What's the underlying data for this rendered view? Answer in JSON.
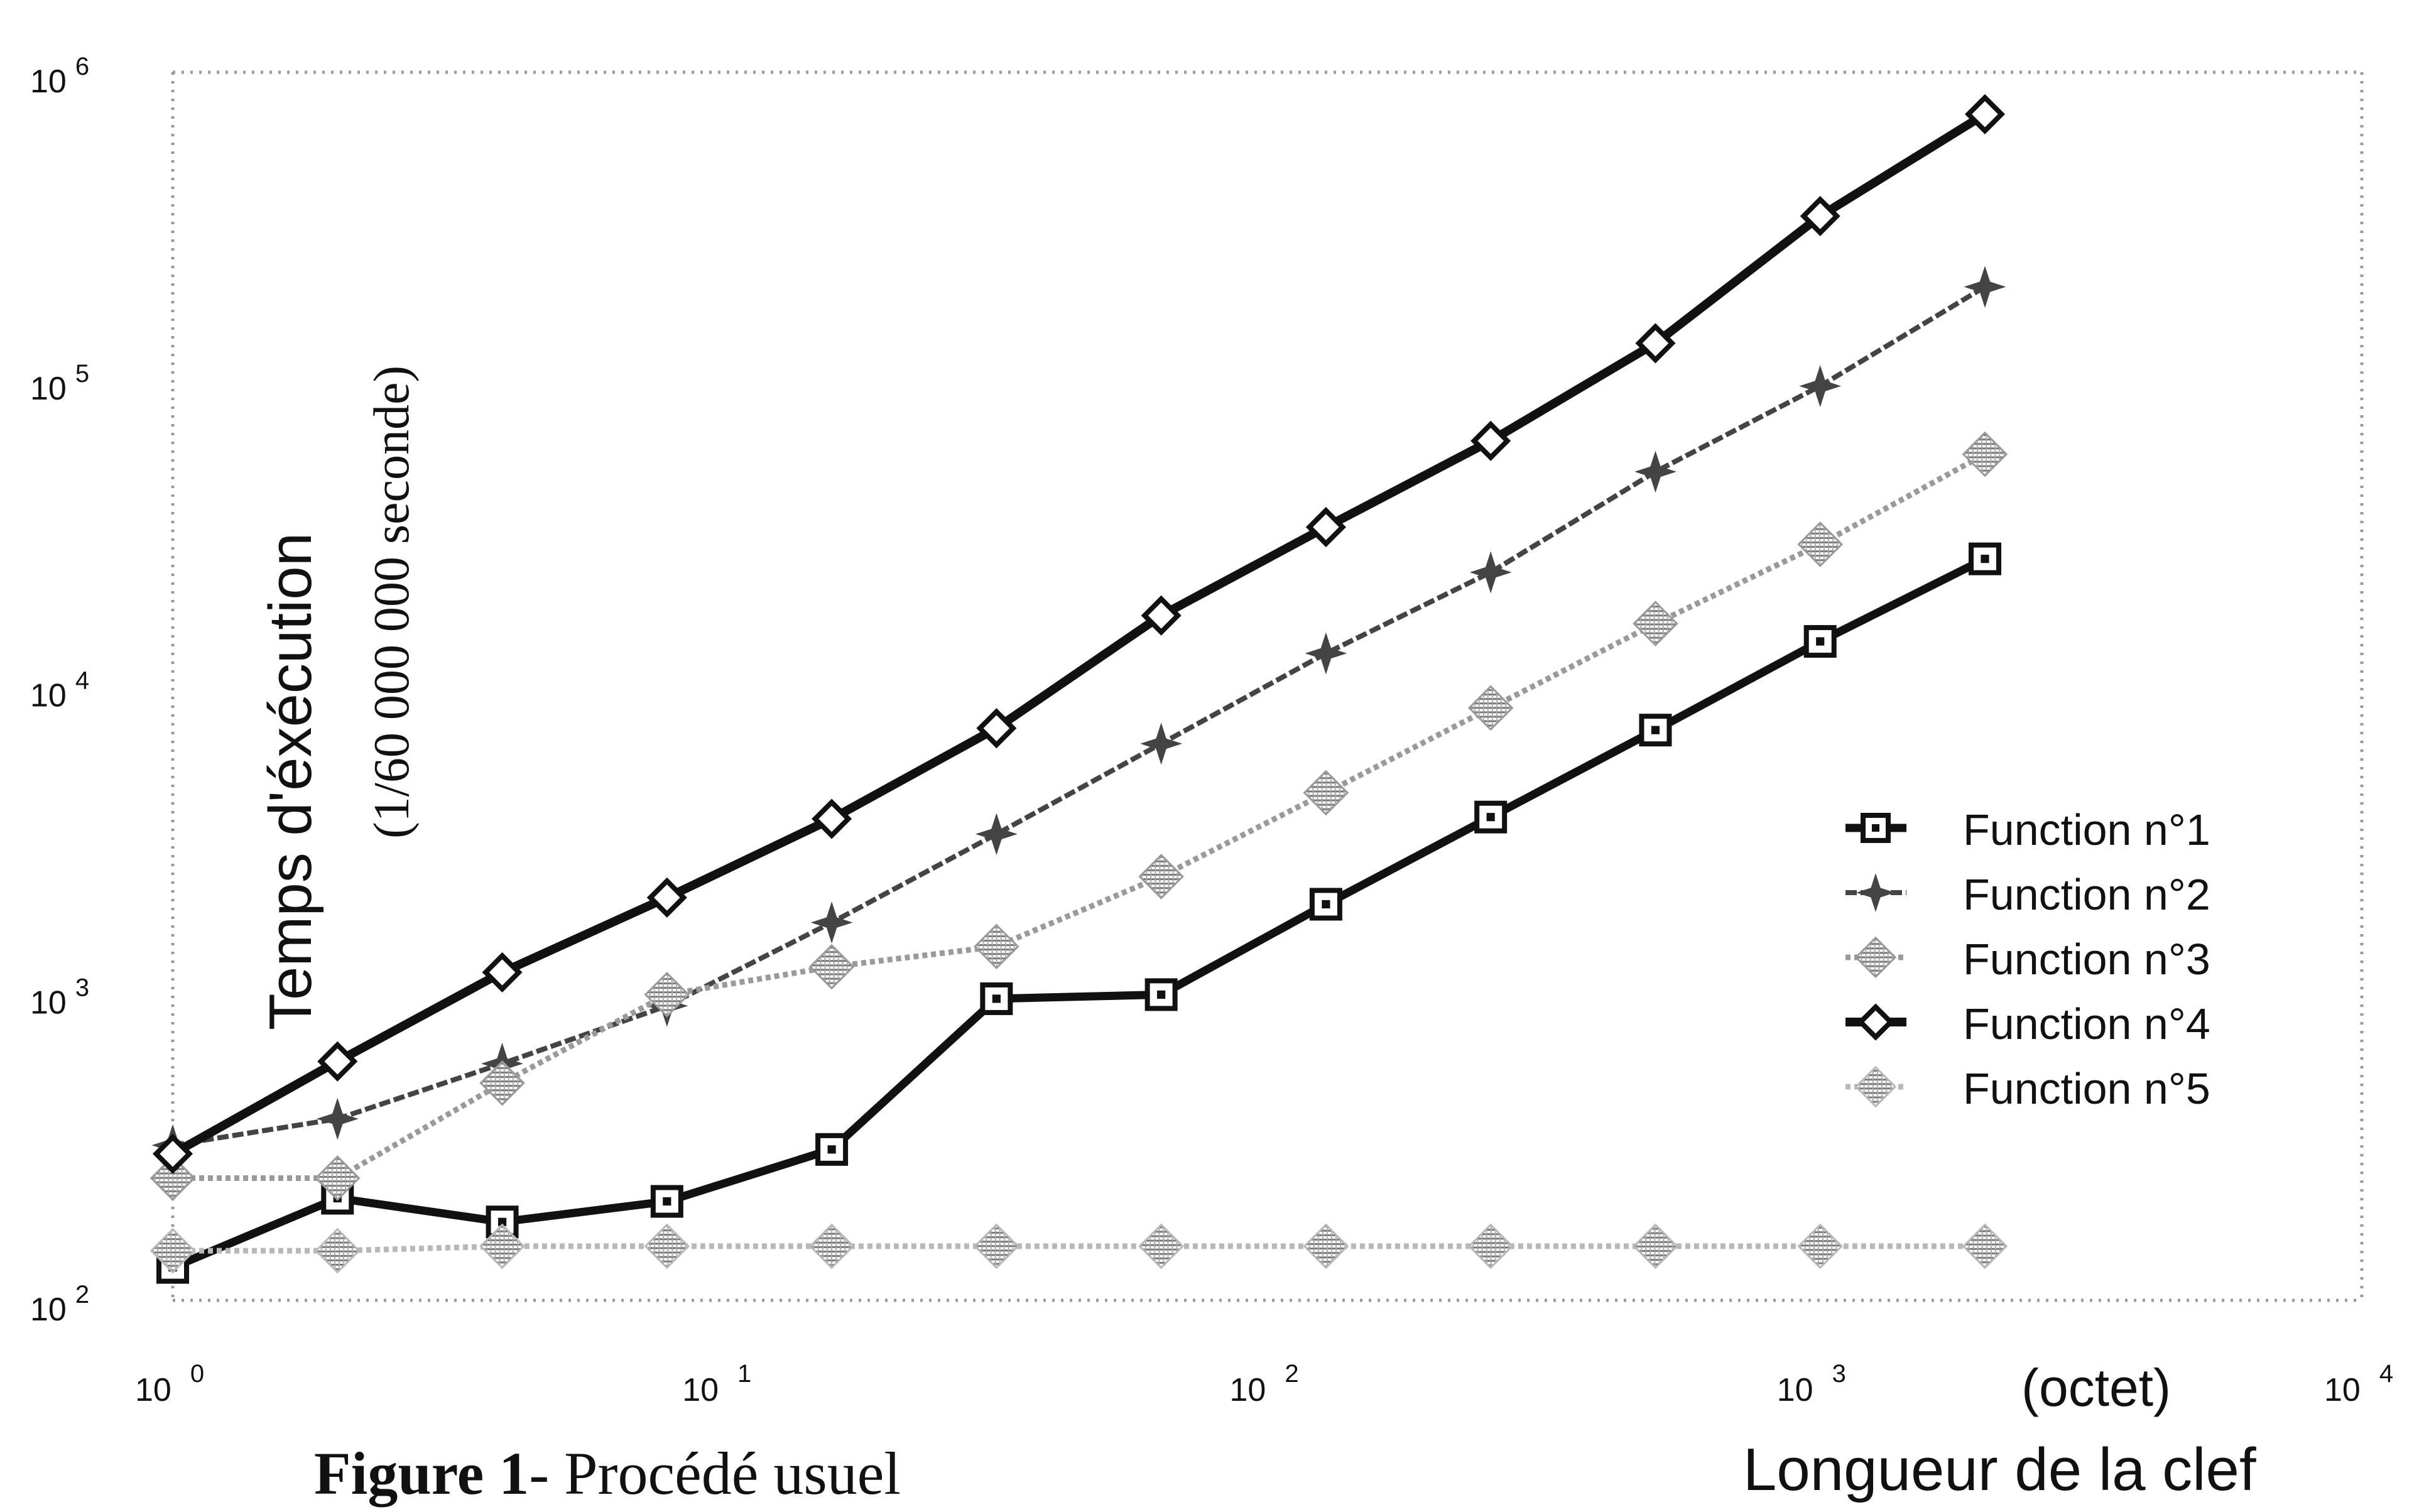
{
  "chart_data": {
    "type": "line",
    "title": "",
    "caption": {
      "bold": "Figure 1",
      "rest": "- Procédé usuel"
    },
    "xlabel": "Longueur de la clef",
    "xunit": "(octet)",
    "ylabel": "Temps d'éxécution",
    "yunit": "(1/60 000 000 seconde)",
    "x_scale": "log",
    "y_scale": "log",
    "xlim": [
      1,
      10000
    ],
    "ylim": [
      100,
      1000000
    ],
    "x_ticks": [
      {
        "base": "10",
        "exp": "0"
      },
      {
        "base": "10",
        "exp": "1"
      },
      {
        "base": "10",
        "exp": "2"
      },
      {
        "base": "10",
        "exp": "3"
      },
      {
        "base": "10",
        "exp": "4"
      }
    ],
    "y_ticks": [
      {
        "base": "10",
        "exp": "2"
      },
      {
        "base": "10",
        "exp": "3"
      },
      {
        "base": "10",
        "exp": "4"
      },
      {
        "base": "10",
        "exp": "5"
      },
      {
        "base": "10",
        "exp": "6"
      }
    ],
    "grid": false,
    "legend_position": "right-middle",
    "x": [
      1,
      2,
      4,
      8,
      16,
      32,
      64,
      128,
      256,
      512,
      1024,
      2048
    ],
    "series": [
      {
        "name": "Function n°1",
        "marker": "square",
        "color": "#111111",
        "values": [
          128,
          215,
          180,
          210,
          310,
          960,
          990,
          1950,
          3750,
          7200,
          14000,
          26000
        ]
      },
      {
        "name": "Function n°2",
        "marker": "star",
        "color": "#444444",
        "values": [
          320,
          390,
          590,
          910,
          1700,
          3300,
          6500,
          12800,
          23500,
          50000,
          95000,
          200000
        ]
      },
      {
        "name": "Function n°3",
        "marker": "hatched",
        "color": "#9a9a9a",
        "values": [
          250,
          250,
          510,
          990,
          1220,
          1420,
          2400,
          4500,
          8500,
          16000,
          29000,
          57000
        ]
      },
      {
        "name": "Function n°4",
        "marker": "diamond",
        "color": "#111111",
        "values": [
          300,
          600,
          1170,
          2050,
          3700,
          7300,
          17000,
          33000,
          63000,
          131000,
          340000,
          730000
        ]
      },
      {
        "name": "Function n°5",
        "marker": "hatched",
        "color": "#b8b8b8",
        "values": [
          145,
          145,
          150,
          150,
          150,
          150,
          150,
          150,
          150,
          150,
          150,
          150
        ]
      }
    ]
  }
}
